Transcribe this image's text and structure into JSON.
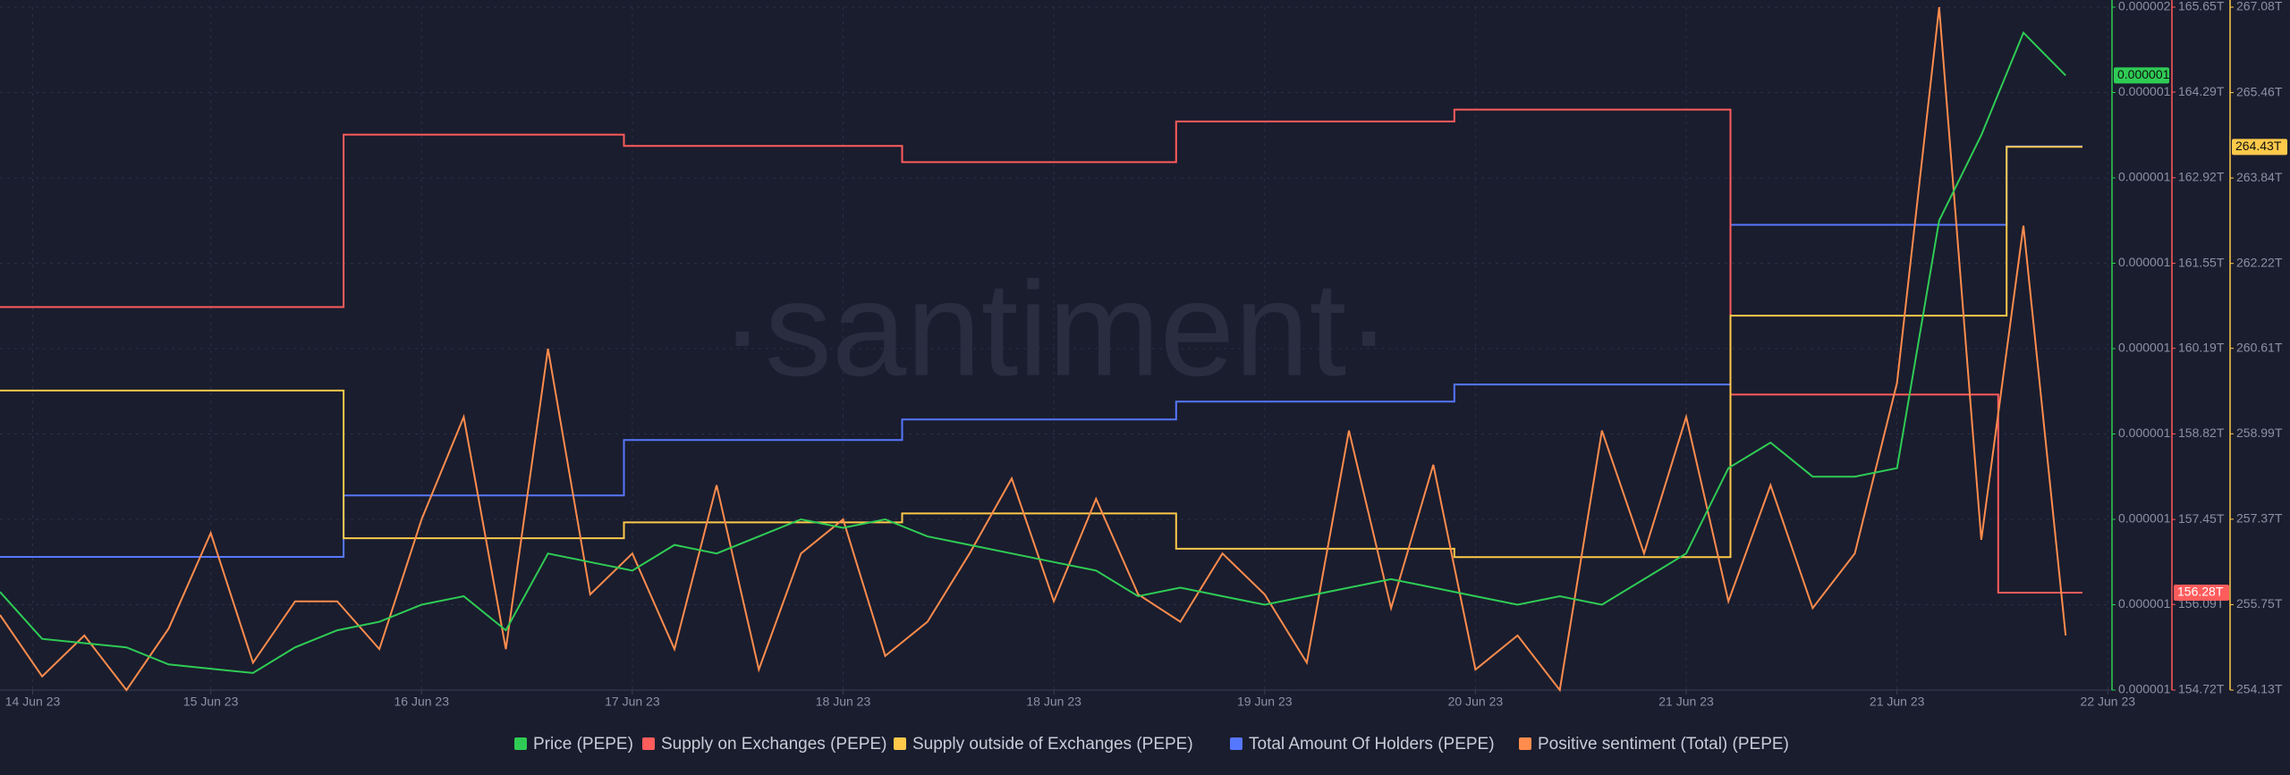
{
  "chart_data": {
    "type": "line",
    "watermark": "·santiment·",
    "xlim": [
      0,
      10.02
    ],
    "xticks": [
      {
        "value": 0.155,
        "label": "14 Jun 23"
      },
      {
        "value": 1,
        "label": "15 Jun 23"
      },
      {
        "value": 2,
        "label": "16 Jun 23"
      },
      {
        "value": 3,
        "label": "17 Jun 23"
      },
      {
        "value": 4,
        "label": "18 Jun 23"
      },
      {
        "value": 5,
        "label": "18 Jun 23"
      },
      {
        "value": 6,
        "label": "19 Jun 23"
      },
      {
        "value": 7,
        "label": "20 Jun 23"
      },
      {
        "value": 8,
        "label": "21 Jun 23"
      },
      {
        "value": 9,
        "label": "21 Jun 23"
      },
      {
        "value": 10,
        "label": "22 Jun 23"
      }
    ],
    "ylim": [
      1.2e-06,
      2e-06
    ],
    "yticks": [
      {
        "value": 1.2e-06,
        "label": "0.000001"
      },
      {
        "value": 1.3e-06,
        "label": "0.000001"
      },
      {
        "value": 1.4e-06,
        "label": "0.000001"
      },
      {
        "value": 1.5e-06,
        "label": "0.000001"
      },
      {
        "value": 1.6e-06,
        "label": "0.000001"
      },
      {
        "value": 1.7e-06,
        "label": "0.000001"
      },
      {
        "value": 1.8e-06,
        "label": "0.000001"
      },
      {
        "value": 1.9e-06,
        "label": "0.000001"
      },
      {
        "value": 2e-06,
        "label": "0.000002"
      }
    ],
    "y2lim": [
      154.72,
      165.65
    ],
    "y2ticks": [
      {
        "value": 154.72,
        "label": "154.72T"
      },
      {
        "value": 156.09,
        "label": "156.09T"
      },
      {
        "value": 157.45,
        "label": "157.45T"
      },
      {
        "value": 158.82,
        "label": "158.82T"
      },
      {
        "value": 160.19,
        "label": "160.19T"
      },
      {
        "value": 161.55,
        "label": "161.55T"
      },
      {
        "value": 162.92,
        "label": "162.92T"
      },
      {
        "value": 164.29,
        "label": "164.29T"
      },
      {
        "value": 165.65,
        "label": "165.65T"
      }
    ],
    "y3lim": [
      254.13,
      267.08
    ],
    "y3ticks": [
      {
        "value": 254.13,
        "label": "254.13T"
      },
      {
        "value": 255.75,
        "label": "255.75T"
      },
      {
        "value": 257.37,
        "label": "257.37T"
      },
      {
        "value": 258.99,
        "label": "258.99T"
      },
      {
        "value": 260.61,
        "label": "260.61T"
      },
      {
        "value": 262.22,
        "label": "262.22T"
      },
      {
        "value": 263.84,
        "label": "263.84T"
      },
      {
        "value": 265.46,
        "label": "265.46T"
      },
      {
        "value": 267.08,
        "label": "267.08T"
      }
    ],
    "y4lim": [
      100000,
      140000
    ],
    "y5lim": [
      0,
      100
    ],
    "grid": true,
    "x": [
      0,
      0.2,
      0.4,
      0.6,
      0.8,
      1,
      1.2,
      1.4,
      1.6,
      1.8,
      2,
      2.2,
      2.4,
      2.6,
      2.8,
      3,
      3.2,
      3.4,
      3.6,
      3.8,
      4,
      4.2,
      4.4,
      4.6,
      4.8,
      5,
      5.2,
      5.4,
      5.6,
      5.8,
      6,
      6.2,
      6.4,
      6.6,
      6.8,
      7,
      7.2,
      7.4,
      7.6,
      7.8,
      8,
      8.2,
      8.4,
      8.6,
      8.8,
      9,
      9.2,
      9.4,
      9.6,
      9.8
    ],
    "series": [
      {
        "name": "Price (PEPE)",
        "color": "#2fcc55",
        "axis": "y",
        "last_label": "0.000001",
        "values": [
          1.315e-06,
          1.26e-06,
          1.255e-06,
          1.25e-06,
          1.23e-06,
          1.225e-06,
          1.22e-06,
          1.25e-06,
          1.27e-06,
          1.28e-06,
          1.3e-06,
          1.31e-06,
          1.27e-06,
          1.36e-06,
          1.35e-06,
          1.34e-06,
          1.37e-06,
          1.36e-06,
          1.38e-06,
          1.4e-06,
          1.39e-06,
          1.4e-06,
          1.38e-06,
          1.37e-06,
          1.36e-06,
          1.35e-06,
          1.34e-06,
          1.31e-06,
          1.32e-06,
          1.31e-06,
          1.3e-06,
          1.31e-06,
          1.32e-06,
          1.33e-06,
          1.32e-06,
          1.31e-06,
          1.3e-06,
          1.31e-06,
          1.3e-06,
          1.33e-06,
          1.36e-06,
          1.46e-06,
          1.49e-06,
          1.45e-06,
          1.45e-06,
          1.46e-06,
          1.75e-06,
          1.85e-06,
          1.97e-06,
          1.92e-06
        ]
      },
      {
        "name": "Supply on Exchanges (PEPE)",
        "color": "#ff5c5c",
        "axis": "y2",
        "last_label": "156.28T",
        "x": [
          0,
          1.63,
          1.63,
          2.96,
          2.96,
          4.28,
          4.28,
          5.58,
          5.58,
          6.9,
          6.9,
          8.21,
          8.21,
          9.48,
          9.48,
          9.88
        ],
        "values": [
          160.85,
          160.85,
          163.61,
          163.61,
          163.43,
          163.43,
          163.17,
          163.17,
          163.82,
          163.82,
          164.01,
          164.01,
          159.45,
          159.45,
          156.28,
          156.28
        ]
      },
      {
        "name": "Supply outside of Exchanges (PEPE)",
        "color": "#ffc94a",
        "axis": "y3",
        "last_label": "264.43T",
        "x": [
          0,
          1.63,
          1.63,
          2.96,
          2.96,
          4.28,
          4.28,
          5.58,
          5.58,
          6.9,
          6.9,
          8.21,
          8.21,
          9.52,
          9.52,
          9.88
        ],
        "values": [
          259.81,
          259.81,
          257.01,
          257.01,
          257.31,
          257.31,
          257.48,
          257.48,
          256.81,
          256.81,
          256.65,
          256.65,
          261.23,
          261.23,
          264.43,
          264.43
        ]
      },
      {
        "name": "Total Amount Of Holders (PEPE)",
        "color": "#5677ff",
        "axis": "y4",
        "x": [
          0,
          1.63,
          1.63,
          2.96,
          2.96,
          4.28,
          4.28,
          5.58,
          5.58,
          6.9,
          6.9,
          8.21,
          8.21,
          9.52,
          9.52,
          9.88
        ],
        "values": [
          107800,
          107800,
          111400,
          111400,
          114650,
          114650,
          115850,
          115850,
          116900,
          116900,
          117900,
          117900,
          127250,
          127250,
          131850,
          131850
        ]
      },
      {
        "name": "Positive sentiment (Total) (PEPE)",
        "color": "#ff8c4d",
        "axis": "y5",
        "values": [
          11,
          2,
          8,
          0,
          9,
          23,
          4,
          13,
          13,
          6,
          25,
          40,
          6,
          50,
          14,
          20,
          6,
          30,
          3,
          20,
          25,
          5,
          10,
          20,
          31,
          13,
          28,
          14,
          10,
          20,
          14,
          4,
          38,
          12,
          33,
          3,
          8,
          0,
          38,
          20,
          40,
          13,
          30,
          12,
          20,
          45,
          100,
          22,
          68,
          8
        ]
      }
    ]
  }
}
